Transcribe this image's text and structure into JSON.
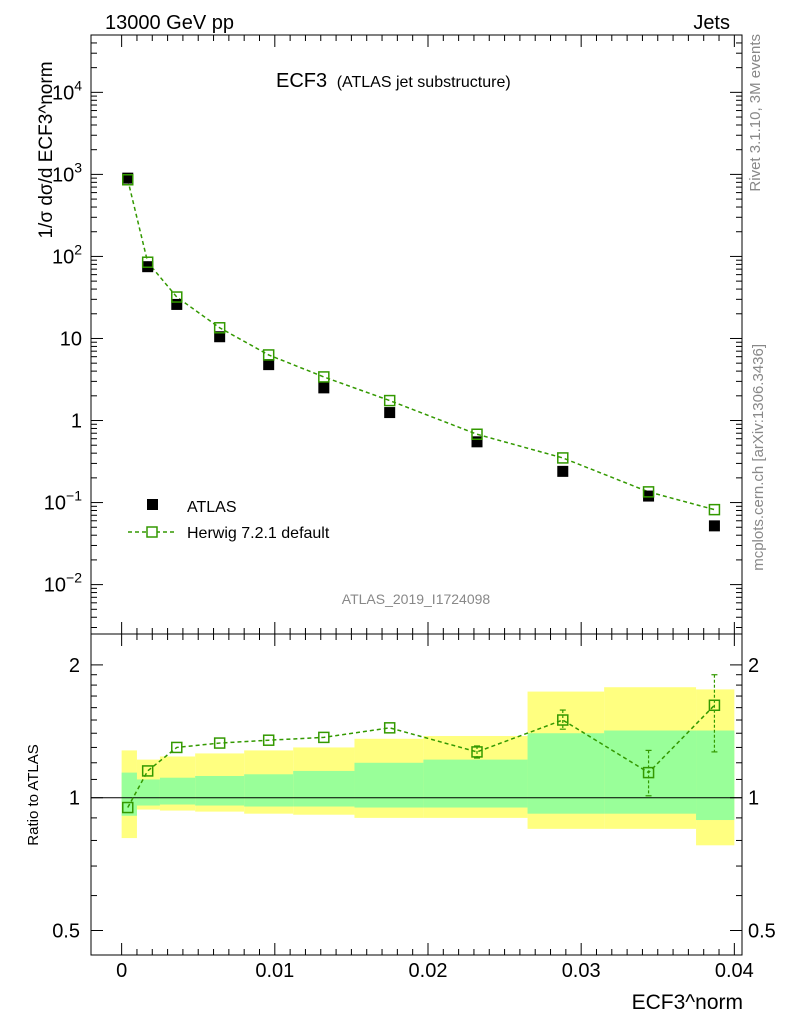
{
  "header": {
    "left": "13000 GeV pp",
    "right": "Jets"
  },
  "side_labels": {
    "rivet": "Rivet 3.1.10,  3M events",
    "mcplots": "mcplots.cern.ch [arXiv:1306.3436]"
  },
  "colors": {
    "data": "#000000",
    "mc": "#339900",
    "band_inner": "#99ff99",
    "band_outer": "#ffff80"
  },
  "chart_data": [
    {
      "type": "scatter",
      "title": "ECF3",
      "subtitle": "(ATLAS jet substructure)",
      "analysis_label": "ATLAS_2019_I1724098",
      "ylabel": "1/σ dσ/d ECF3^norm",
      "yscale": "log",
      "ylim": [
        0.0025,
        50000
      ],
      "xlim": [
        -0.002,
        0.0405
      ],
      "y_tick_labels": [
        {
          "v": 10000,
          "base": "10",
          "exp": "4"
        },
        {
          "v": 1000,
          "base": "10",
          "exp": "3"
        },
        {
          "v": 100,
          "base": "10",
          "exp": "2"
        },
        {
          "v": 10,
          "base": "10",
          "exp": ""
        },
        {
          "v": 1,
          "base": "1",
          "exp": ""
        },
        {
          "v": 0.1,
          "base": "10",
          "exp": "−1"
        },
        {
          "v": 0.01,
          "base": "10",
          "exp": "−2"
        }
      ],
      "legend_position": "lower-left",
      "series": [
        {
          "name": "ATLAS",
          "style": "data",
          "x": [
            0.0004,
            0.0017,
            0.0036,
            0.0064,
            0.0096,
            0.0132,
            0.0175,
            0.0232,
            0.0288,
            0.0344,
            0.0387
          ],
          "y": [
            900,
            75,
            26,
            10.5,
            4.8,
            2.5,
            1.25,
            0.55,
            0.24,
            0.12,
            0.052
          ]
        },
        {
          "name": "Herwig 7.2.1 default",
          "style": "mc",
          "x": [
            0.0004,
            0.0017,
            0.0036,
            0.0064,
            0.0096,
            0.0132,
            0.0175,
            0.0232,
            0.0288,
            0.0344,
            0.0387
          ],
          "y": [
            860,
            85,
            32,
            13.5,
            6.3,
            3.4,
            1.75,
            0.68,
            0.35,
            0.135,
            0.082
          ]
        }
      ]
    },
    {
      "type": "line",
      "ylabel": "Ratio to ATLAS",
      "yscale": "log",
      "ylim": [
        0.44,
        2.35
      ],
      "xlim": [
        -0.002,
        0.0405
      ],
      "xlabel": "ECF3^norm",
      "y_ticks": [
        0.5,
        1,
        2
      ],
      "y_tick_labels": [
        "0.5",
        "1",
        "2"
      ],
      "x_ticks": [
        0,
        0.01,
        0.02,
        0.03,
        0.04
      ],
      "x_tick_labels": [
        "0",
        "0.01",
        "0.02",
        "0.03",
        "0.04"
      ],
      "reference": 1,
      "bands": [
        {
          "x0": 0.0,
          "x1": 0.001,
          "outer": [
            0.81,
            1.28
          ],
          "inner": [
            0.91,
            1.14
          ]
        },
        {
          "x0": 0.001,
          "x1": 0.0025,
          "outer": [
            0.94,
            1.22
          ],
          "inner": [
            0.96,
            1.1
          ]
        },
        {
          "x0": 0.0025,
          "x1": 0.0048,
          "outer": [
            0.935,
            1.24
          ],
          "inner": [
            0.965,
            1.11
          ]
        },
        {
          "x0": 0.0048,
          "x1": 0.008,
          "outer": [
            0.93,
            1.26
          ],
          "inner": [
            0.96,
            1.12
          ]
        },
        {
          "x0": 0.008,
          "x1": 0.0112,
          "outer": [
            0.92,
            1.28
          ],
          "inner": [
            0.955,
            1.13
          ]
        },
        {
          "x0": 0.0112,
          "x1": 0.0152,
          "outer": [
            0.915,
            1.3
          ],
          "inner": [
            0.955,
            1.15
          ]
        },
        {
          "x0": 0.0152,
          "x1": 0.0197,
          "outer": [
            0.9,
            1.36
          ],
          "inner": [
            0.95,
            1.2
          ]
        },
        {
          "x0": 0.0197,
          "x1": 0.0265,
          "outer": [
            0.9,
            1.38
          ],
          "inner": [
            0.95,
            1.22
          ]
        },
        {
          "x0": 0.0265,
          "x1": 0.0315,
          "outer": [
            0.85,
            1.74
          ],
          "inner": [
            0.92,
            1.4
          ]
        },
        {
          "x0": 0.0315,
          "x1": 0.0375,
          "outer": [
            0.85,
            1.78
          ],
          "inner": [
            0.92,
            1.42
          ]
        },
        {
          "x0": 0.0375,
          "x1": 0.04,
          "outer": [
            0.78,
            1.76
          ],
          "inner": [
            0.89,
            1.42
          ]
        }
      ],
      "series": [
        {
          "name": "Herwig 7.2.1 default",
          "x": [
            0.0004,
            0.0017,
            0.0036,
            0.0064,
            0.0096,
            0.0132,
            0.0175,
            0.0232,
            0.0288,
            0.0344,
            0.0387
          ],
          "y": [
            0.95,
            1.15,
            1.3,
            1.33,
            1.35,
            1.37,
            1.44,
            1.27,
            1.5,
            1.14,
            1.62
          ],
          "err_low": [
            0.0,
            0.0,
            0.0,
            0.0,
            0.0,
            0.0,
            0.0,
            0.04,
            0.07,
            0.13,
            0.35
          ],
          "err_high": [
            0.0,
            0.0,
            0.0,
            0.0,
            0.0,
            0.0,
            0.0,
            0.04,
            0.08,
            0.14,
            0.28
          ]
        }
      ]
    }
  ]
}
